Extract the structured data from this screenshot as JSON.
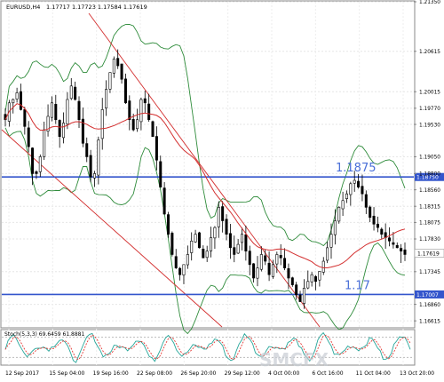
{
  "header": {
    "symbol": "EURUSD,H4",
    "ohlc": "1.17717 1.17723 1.17584 1.17619"
  },
  "chart_data": {
    "type": "candlestick",
    "symbol": "EURUSD",
    "timeframe": "H4",
    "ylim": [
      1.16525,
      1.2135
    ],
    "y_ticks": [
      "1.21350",
      "1.20615",
      "1.20015",
      "1.19770",
      "1.19530",
      "1.19050",
      "1.18800",
      "1.18560",
      "1.18315",
      "1.18075",
      "1.17830",
      "1.17345",
      "1.16860",
      "1.16615"
    ],
    "x_ticks": [
      "12 Sep 2017",
      "15 Sep 04:00",
      "19 Sep 16:00",
      "22 Sep 08:00",
      "26 Sep 20:00",
      "29 Sep 12:00",
      "4 Oct 00:00",
      "6 Oct 16:00",
      "11 Oct 04:00",
      "13 Oct 20:00"
    ],
    "current_price": "1.17619",
    "levels": [
      {
        "price": 1.1875,
        "axis_label": "1.18750",
        "annotation": "1.1875",
        "color": "#3355cc"
      },
      {
        "price": 1.17007,
        "axis_label": "1.17007",
        "annotation": "1.17",
        "color": "#3355cc"
      }
    ],
    "close_series": [
      1.196,
      1.1985,
      1.199,
      1.2,
      1.1975,
      1.195,
      1.192,
      1.188,
      1.188,
      1.1905,
      1.1945,
      1.1965,
      1.1985,
      1.196,
      1.1935,
      1.1955,
      1.199,
      1.201,
      1.199,
      1.196,
      1.1925,
      1.1905,
      1.1875,
      1.188,
      1.193,
      1.1975,
      1.2005,
      1.203,
      1.205,
      1.204,
      1.202,
      1.1985,
      1.196,
      1.1945,
      1.196,
      1.199,
      1.1985,
      1.196,
      1.1935,
      1.19,
      1.186,
      1.182,
      1.179,
      1.176,
      1.174,
      1.173,
      1.1745,
      1.176,
      1.178,
      1.179,
      1.177,
      1.1755,
      1.1765,
      1.1785,
      1.18,
      1.183,
      1.181,
      1.179,
      1.177,
      1.176,
      1.1775,
      1.179,
      1.1765,
      1.1745,
      1.1725,
      1.174,
      1.176,
      1.175,
      1.173,
      1.1745,
      1.176,
      1.1755,
      1.174,
      1.1725,
      1.1715,
      1.17,
      1.169,
      1.171,
      1.172,
      1.173,
      1.172,
      1.1735,
      1.175,
      1.177,
      1.179,
      1.181,
      1.183,
      1.184,
      1.185,
      1.1865,
      1.187,
      1.186,
      1.185,
      1.183,
      1.1815,
      1.1805,
      1.18,
      1.179,
      1.1785,
      1.178,
      1.1775,
      1.177,
      1.1765,
      1.176
    ],
    "stochastic": {
      "label": "Stoch(5,3,3) 69.6459 61.8881",
      "ylim": [
        0,
        100
      ],
      "k_color": "#26a69a",
      "d_color": "#e53935"
    },
    "watermark": "SMCFX"
  }
}
